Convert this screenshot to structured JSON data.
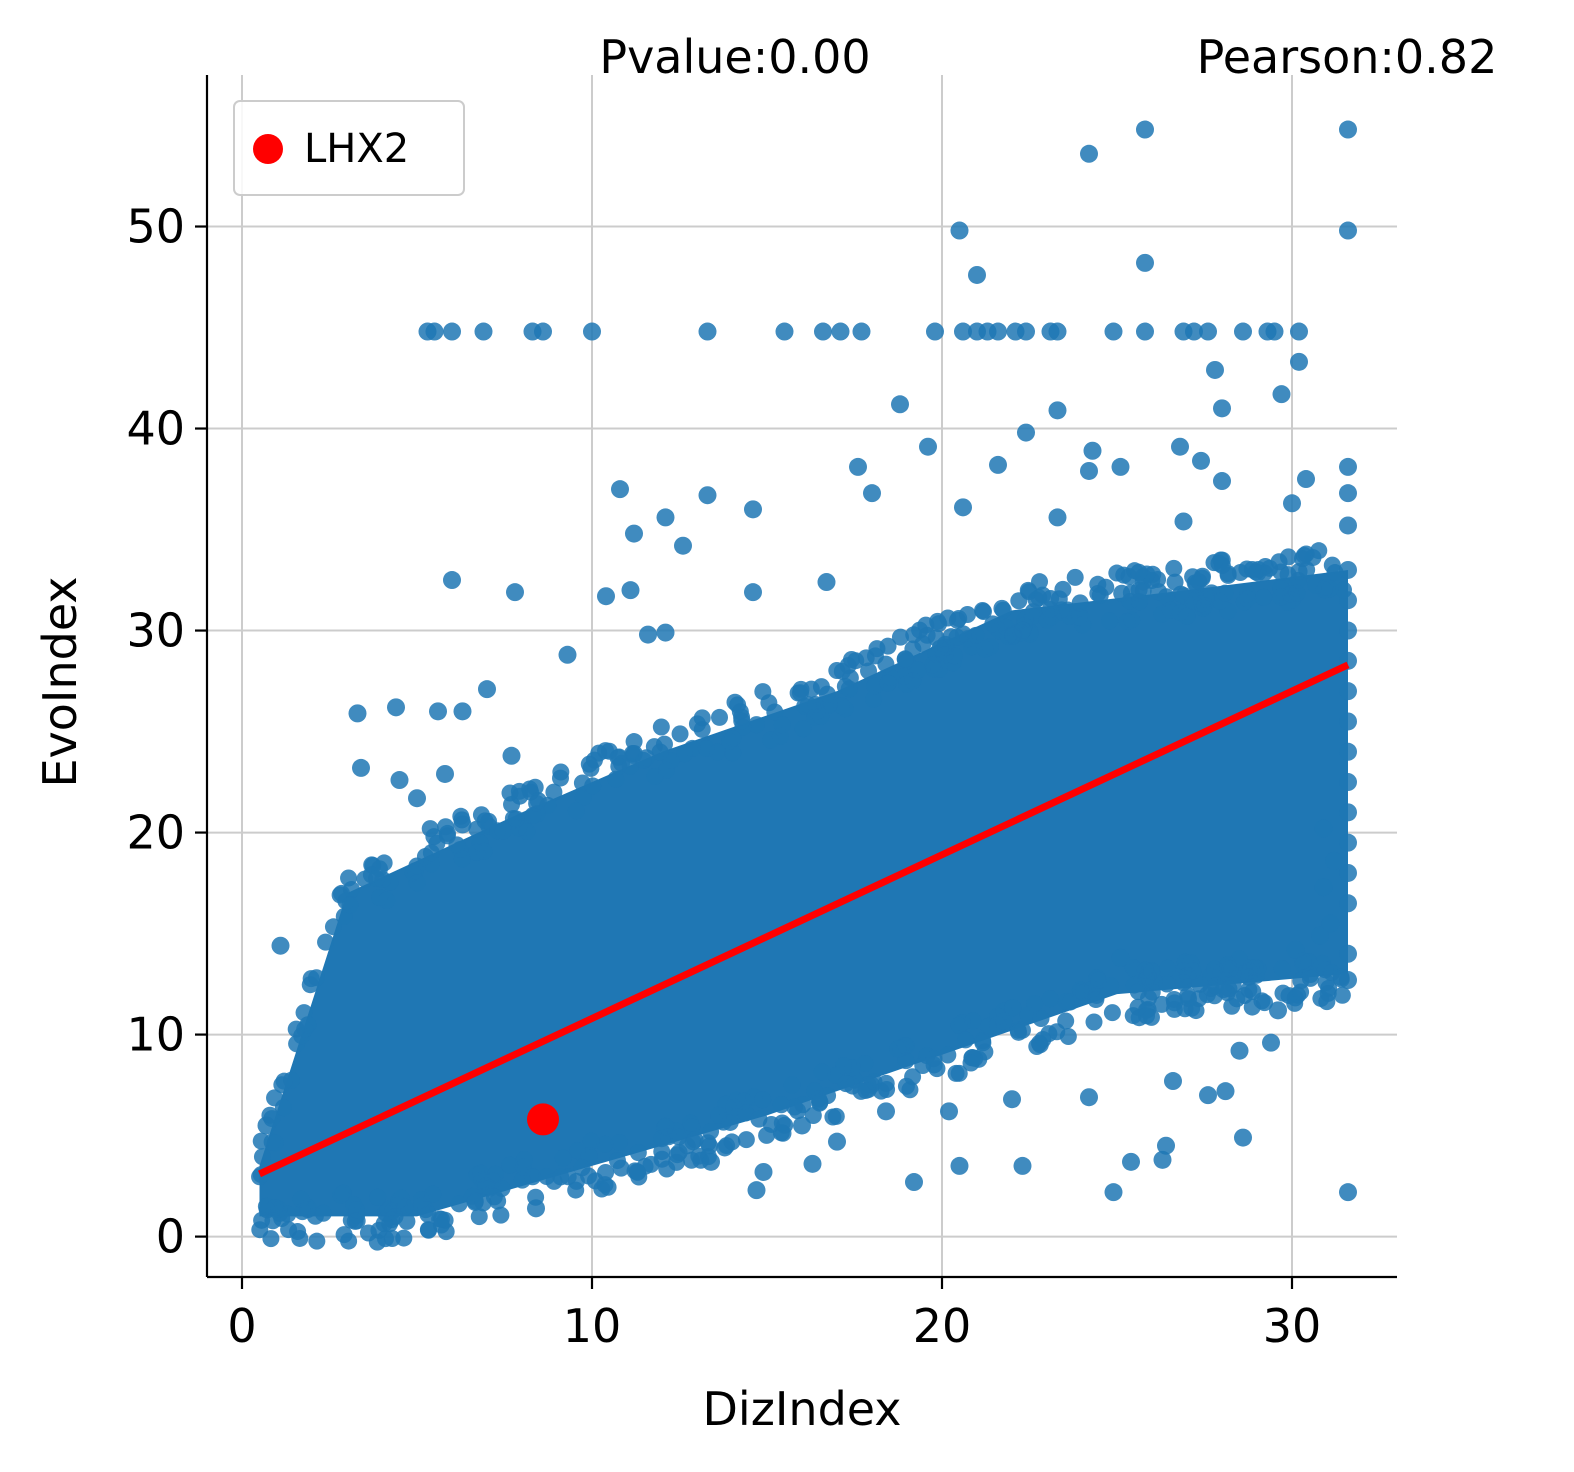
{
  "chart_data": {
    "type": "scatter",
    "xlabel": "DizIndex",
    "ylabel": "EvoIndex",
    "xlim": [
      -1,
      33
    ],
    "ylim": [
      -2,
      57.5
    ],
    "xticks": [
      0,
      10,
      20,
      30
    ],
    "yticks": [
      0,
      10,
      20,
      30,
      40,
      50
    ],
    "grid": true,
    "legend_placement": "top-left",
    "annotations": {
      "pvalue": "Pvalue:0.00",
      "pearson": "Pearson:0.82"
    },
    "colors": {
      "points": "#1f77b4",
      "highlight": "#ff0000",
      "fit_line": "#ff0000"
    },
    "series": [
      {
        "name": "",
        "kind": "points",
        "points": [
          [
            5.3,
            44.8
          ],
          [
            5.5,
            44.8
          ],
          [
            6.0,
            44.8
          ],
          [
            6.9,
            44.8
          ],
          [
            8.3,
            44.8
          ],
          [
            8.6,
            44.8
          ],
          [
            10.0,
            44.8
          ],
          [
            13.3,
            44.8
          ],
          [
            15.5,
            44.8
          ],
          [
            16.6,
            44.8
          ],
          [
            17.1,
            44.8
          ],
          [
            17.7,
            44.8
          ],
          [
            19.8,
            44.8
          ],
          [
            20.6,
            44.8
          ],
          [
            21.0,
            44.8
          ],
          [
            21.3,
            44.8
          ],
          [
            21.6,
            44.8
          ],
          [
            22.1,
            44.8
          ],
          [
            22.4,
            44.8
          ],
          [
            23.1,
            44.8
          ],
          [
            23.3,
            44.8
          ],
          [
            24.9,
            44.8
          ],
          [
            25.8,
            44.8
          ],
          [
            26.9,
            44.8
          ],
          [
            27.2,
            44.8
          ],
          [
            27.6,
            44.8
          ],
          [
            28.6,
            44.8
          ],
          [
            29.3,
            44.8
          ],
          [
            29.5,
            44.8
          ],
          [
            30.2,
            44.8
          ],
          [
            25.8,
            54.8
          ],
          [
            31.6,
            54.8
          ],
          [
            24.2,
            53.6
          ],
          [
            20.5,
            49.8
          ],
          [
            31.6,
            49.8
          ],
          [
            21.0,
            47.6
          ],
          [
            25.8,
            48.2
          ],
          [
            30.2,
            43.3
          ],
          [
            27.8,
            42.9
          ],
          [
            18.8,
            41.2
          ],
          [
            28.0,
            41.0
          ],
          [
            29.7,
            41.7
          ],
          [
            23.3,
            40.9
          ],
          [
            22.4,
            39.8
          ],
          [
            19.6,
            39.1
          ],
          [
            24.3,
            38.9
          ],
          [
            26.8,
            39.1
          ],
          [
            27.4,
            38.4
          ],
          [
            17.6,
            38.1
          ],
          [
            21.6,
            38.2
          ],
          [
            24.2,
            37.9
          ],
          [
            25.1,
            38.1
          ],
          [
            31.6,
            38.1
          ],
          [
            10.8,
            37.0
          ],
          [
            13.3,
            36.7
          ],
          [
            18.0,
            36.8
          ],
          [
            20.6,
            36.1
          ],
          [
            28.0,
            37.4
          ],
          [
            31.6,
            36.8
          ],
          [
            14.6,
            36.0
          ],
          [
            11.2,
            34.8
          ],
          [
            12.1,
            35.6
          ],
          [
            23.3,
            35.6
          ],
          [
            26.9,
            35.4
          ],
          [
            31.6,
            35.2
          ],
          [
            12.6,
            34.2
          ],
          [
            30.0,
            36.3
          ],
          [
            30.4,
            37.5
          ],
          [
            31.6,
            33.0
          ],
          [
            31.6,
            31.5
          ],
          [
            31.6,
            30.0
          ],
          [
            31.6,
            28.5
          ],
          [
            31.6,
            27.0
          ],
          [
            31.6,
            25.5
          ],
          [
            31.6,
            24.0
          ],
          [
            31.6,
            22.5
          ],
          [
            31.6,
            21.0
          ],
          [
            31.6,
            19.5
          ],
          [
            31.6,
            18.0
          ],
          [
            31.6,
            16.5
          ],
          [
            31.6,
            14.0
          ],
          [
            31.6,
            12.7
          ],
          [
            31.6,
            2.2
          ],
          [
            6.0,
            32.5
          ],
          [
            7.8,
            31.9
          ],
          [
            10.4,
            31.7
          ],
          [
            11.1,
            32.0
          ],
          [
            14.6,
            31.9
          ],
          [
            16.7,
            32.4
          ],
          [
            3.3,
            25.9
          ],
          [
            4.4,
            26.2
          ],
          [
            5.6,
            26.0
          ],
          [
            6.3,
            26.0
          ],
          [
            7.0,
            27.1
          ],
          [
            3.4,
            23.2
          ],
          [
            4.5,
            22.6
          ],
          [
            5.0,
            21.7
          ],
          [
            5.8,
            22.9
          ],
          [
            6.3,
            20.4
          ],
          [
            7.7,
            23.8
          ],
          [
            9.3,
            28.8
          ],
          [
            11.6,
            29.8
          ],
          [
            12.1,
            29.9
          ],
          [
            1.1,
            14.4
          ],
          [
            0.7,
            5.5
          ],
          [
            8.4,
            1.4
          ],
          [
            14.7,
            2.3
          ],
          [
            19.2,
            2.7
          ],
          [
            20.5,
            3.5
          ],
          [
            22.3,
            3.5
          ],
          [
            24.9,
            2.2
          ],
          [
            25.4,
            3.7
          ],
          [
            26.3,
            3.8
          ],
          [
            28.6,
            4.9
          ],
          [
            26.4,
            4.5
          ],
          [
            14.9,
            3.2
          ],
          [
            16.3,
            3.6
          ],
          [
            13.4,
            3.7
          ],
          [
            25.1,
            13.8
          ],
          [
            28.1,
            7.2
          ],
          [
            28.5,
            9.2
          ],
          [
            29.4,
            9.6
          ],
          [
            30.1,
            14.2
          ],
          [
            30.8,
            14.9
          ],
          [
            31.1,
            15.5
          ],
          [
            30.9,
            17.3
          ],
          [
            31.2,
            18.6
          ],
          [
            30.9,
            20.2
          ],
          [
            29.6,
            11.2
          ],
          [
            27.6,
            7.0
          ],
          [
            26.6,
            7.7
          ],
          [
            22.0,
            6.8
          ],
          [
            24.2,
            6.9
          ],
          [
            20.2,
            6.2
          ],
          [
            18.4,
            6.2
          ],
          [
            16.0,
            5.5
          ],
          [
            17.0,
            4.7
          ]
        ]
      },
      {
        "name": "LHX2",
        "kind": "highlight",
        "points": [
          [
            8.6,
            5.8
          ]
        ]
      },
      {
        "name": "",
        "kind": "fit_line",
        "points": [
          [
            0.5,
            3.1
          ],
          [
            31.6,
            28.3
          ]
        ]
      }
    ],
    "dense_cloud": {
      "note": "bulk of points following regression trend",
      "x_range": [
        0.5,
        31.6
      ],
      "center_line": [
        [
          0.5,
          3.1
        ],
        [
          31.6,
          28.3
        ]
      ],
      "spread_low": [
        [
          0.5,
          1.0
        ],
        [
          5,
          1.0
        ],
        [
          10,
          3.5
        ],
        [
          15,
          6.0
        ],
        [
          20,
          9.0
        ],
        [
          25,
          12.0
        ],
        [
          31.6,
          13.0
        ]
      ],
      "spread_high": [
        [
          0.5,
          3.5
        ],
        [
          3,
          17.0
        ],
        [
          8,
          21.0
        ],
        [
          12,
          24.0
        ],
        [
          17,
          27.0
        ],
        [
          22,
          31.0
        ],
        [
          27,
          32.0
        ],
        [
          31.6,
          33.0
        ]
      ]
    }
  }
}
